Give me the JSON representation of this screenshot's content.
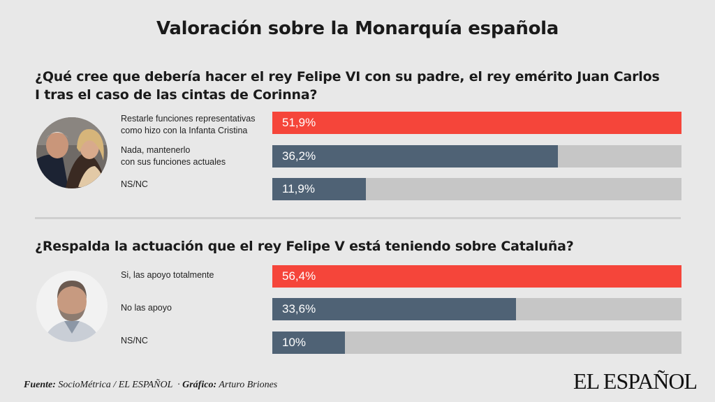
{
  "title": "Valoración sobre la Monarquía española",
  "colors": {
    "highlight": "#f5453a",
    "neutral": "#4f6275",
    "track": "#c6c6c6"
  },
  "chart_data": [
    {
      "type": "bar",
      "orientation": "horizontal",
      "title": "¿Qué cree que debería hacer el rey Felipe VI con su padre, el rey emérito Juan Carlos I tras el caso de las cintas de Corinna?",
      "categories": [
        [
          "Restarle funciones representativas",
          "como hizo con la Infanta Cristina"
        ],
        [
          "Nada, mantenerlo",
          "con sus funciones actuales"
        ],
        [
          "NS/NC"
        ]
      ],
      "values": [
        51.9,
        36.2,
        11.9
      ],
      "value_labels": [
        "51,9%",
        "36,2%",
        "11,9%"
      ],
      "xlim": [
        0,
        51.9
      ]
    },
    {
      "type": "bar",
      "orientation": "horizontal",
      "title": "¿Respalda la actuación que el rey Felipe V está teniendo sobre Cataluña?",
      "categories": [
        [
          "Si, las apoyo totalmente"
        ],
        [
          "No las apoyo"
        ],
        [
          "NS/NC"
        ]
      ],
      "values": [
        56.4,
        33.6,
        10
      ],
      "value_labels": [
        "56,4%",
        "33,6%",
        "10%"
      ],
      "xlim": [
        0,
        56.4
      ]
    }
  ],
  "footer": {
    "source_label": "Fuente:",
    "source_text": "SocioMétrica / EL ESPAÑOL",
    "sep": "·",
    "graphic_label": "Gráfico:",
    "graphic_text": "Arturo Briones"
  },
  "brand": "EL ESPAÑOL"
}
